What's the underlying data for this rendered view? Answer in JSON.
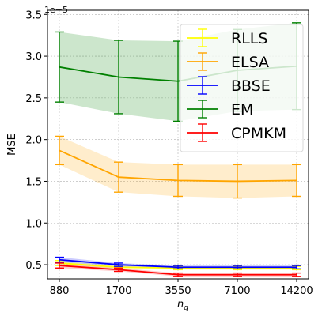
{
  "chart_data": {
    "type": "line",
    "title": "",
    "xlabel": "n_q",
    "ylabel": "MSE",
    "y_offset_label": "1e−5",
    "categories": [
      "880",
      "1700",
      "3550",
      "7100",
      "14200"
    ],
    "ylim": [
      0.33,
      3.55
    ],
    "yticks": [
      0.5,
      1.0,
      1.5,
      2.0,
      2.5,
      3.0,
      3.5
    ],
    "ytick_labels": [
      "0.5",
      "1.0",
      "1.5",
      "2.0",
      "2.5",
      "3.0",
      "3.5"
    ],
    "grid": true,
    "legend_position": "top-right",
    "series": [
      {
        "name": "RLLS",
        "color": "#ffff00",
        "values": [
          0.52,
          0.47,
          0.46,
          0.46,
          0.46
        ],
        "errors": [
          0.03,
          0.02,
          0.02,
          0.02,
          0.02
        ]
      },
      {
        "name": "ELSA",
        "color": "#ffa500",
        "values": [
          1.87,
          1.55,
          1.51,
          1.5,
          1.51
        ],
        "errors": [
          0.17,
          0.18,
          0.19,
          0.2,
          0.19
        ]
      },
      {
        "name": "BBSE",
        "color": "#0000ff",
        "values": [
          0.56,
          0.5,
          0.47,
          0.47,
          0.47
        ],
        "errors": [
          0.03,
          0.02,
          0.02,
          0.02,
          0.02
        ]
      },
      {
        "name": "EM",
        "color": "#008000",
        "values": [
          2.87,
          2.75,
          2.7,
          2.83,
          2.88
        ],
        "errors": [
          0.42,
          0.44,
          0.48,
          0.49,
          0.52
        ]
      },
      {
        "name": "CPMKM",
        "color": "#ff0000",
        "values": [
          0.49,
          0.44,
          0.38,
          0.38,
          0.38
        ],
        "errors": [
          0.03,
          0.02,
          0.02,
          0.02,
          0.02
        ]
      }
    ]
  }
}
